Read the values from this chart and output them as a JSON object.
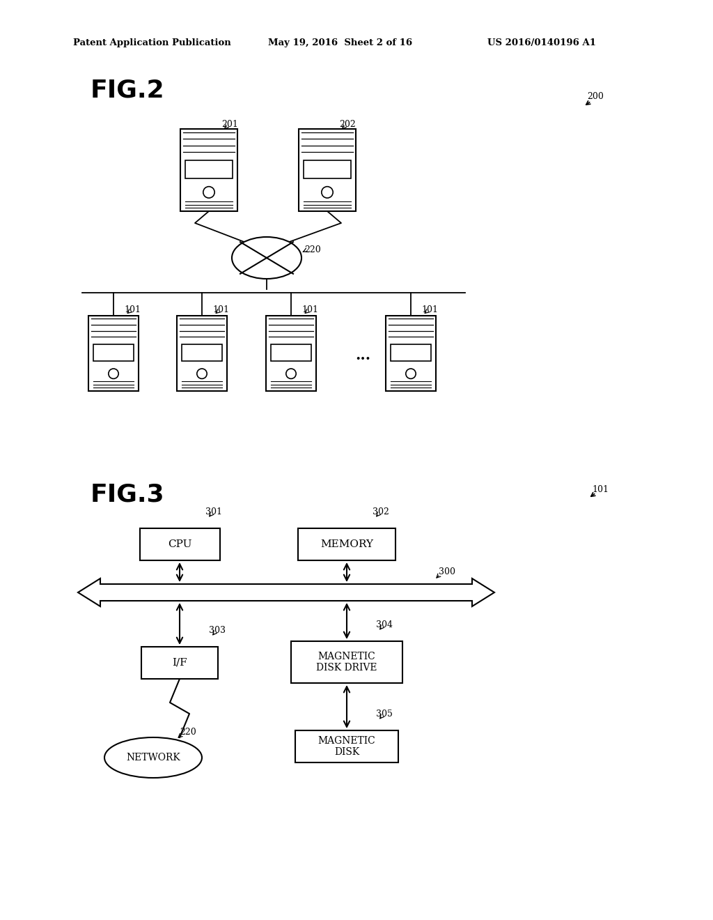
{
  "header_left": "Patent Application Publication",
  "header_mid": "May 19, 2016  Sheet 2 of 16",
  "header_right": "US 2016/0140196 A1",
  "fig2_label": "FIG.2",
  "fig2_ref": "200",
  "fig3_label": "FIG.3",
  "fig3_ref": "101",
  "bg_color": "#ffffff",
  "line_color": "#000000"
}
